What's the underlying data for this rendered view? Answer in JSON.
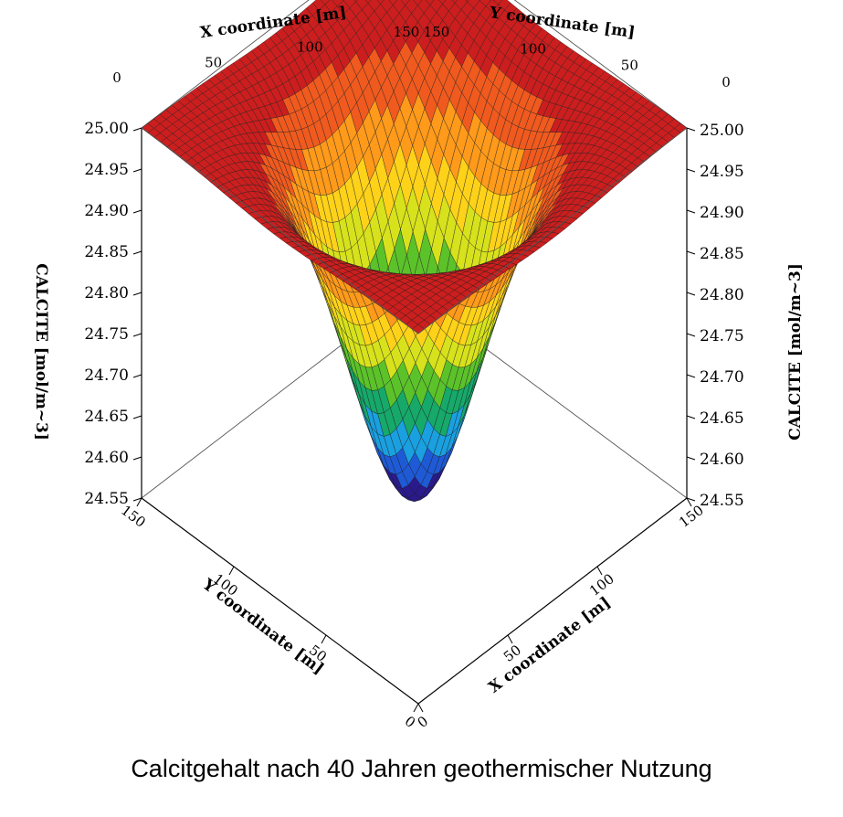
{
  "caption": "Calcitgehalt nach 40 Jahren geothermischer Nutzung",
  "chart_data": {
    "type": "surface3d",
    "title": "",
    "zlabel": "CALCITE  [mol/m~3]",
    "xlabel": "X coordinate [m]",
    "ylabel": "Y coordinate [m]",
    "xlim": [
      0,
      150
    ],
    "ylim": [
      0,
      150
    ],
    "zlim": [
      24.55,
      25.0
    ],
    "x_ticks": [
      "0",
      "50",
      "100",
      "150"
    ],
    "y_ticks": [
      "0",
      "50",
      "100",
      "150"
    ],
    "z_ticks": [
      "24.55",
      "24.60",
      "24.65",
      "24.70",
      "24.75",
      "24.80",
      "24.85",
      "24.90",
      "24.95",
      "25.00"
    ],
    "surface": {
      "baseline": 25.0,
      "minimum": 24.55,
      "minimum_at": [
        75,
        75
      ],
      "shape": "gaussian depression centered in domain"
    },
    "colormap": [
      "#2a1a8c",
      "#1f5ad6",
      "#1aa0e0",
      "#16a96a",
      "#5cc22a",
      "#d7e21c",
      "#ffd21a",
      "#ff9a1a",
      "#f05a1e",
      "#cc1e1e"
    ]
  }
}
